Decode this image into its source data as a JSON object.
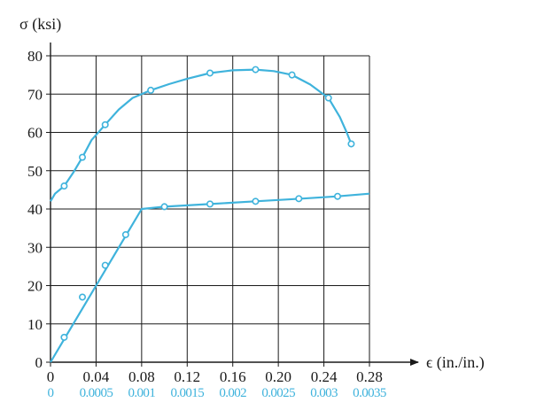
{
  "chart_data": {
    "type": "line",
    "title": "",
    "ylabel": "σ (ksi)",
    "xlabel": "ϵ (in./in.)",
    "ylim": [
      0,
      80
    ],
    "xlim": [
      0,
      0.28
    ],
    "grid": true,
    "y_ticks": [
      "0",
      "10",
      "20",
      "30",
      "40",
      "50",
      "60",
      "70",
      "80"
    ],
    "x_ticks_upper": [
      "0",
      "0.04",
      "0.08",
      "0.12",
      "0.16",
      "0.20",
      "0.24",
      "0.28"
    ],
    "x_ticks_lower": [
      "0",
      "0.0005",
      "0.001",
      "0.0015",
      "0.002",
      "0.0025",
      "0.003",
      "0.0035"
    ],
    "colors": {
      "curve": "#3fb3dc",
      "grid": "#1a1a1a",
      "lower_scale": "#3fb3dc"
    },
    "series": [
      {
        "curve": [
          [
            0,
            42
          ],
          [
            0.004,
            44
          ],
          [
            0.012,
            46
          ],
          [
            0.02,
            49.5
          ],
          [
            0.028,
            53.5
          ],
          [
            0.036,
            58
          ],
          [
            0.048,
            62
          ],
          [
            0.06,
            66
          ],
          [
            0.072,
            69
          ],
          [
            0.088,
            71
          ],
          [
            0.104,
            72.6
          ],
          [
            0.12,
            74
          ],
          [
            0.14,
            75.5
          ],
          [
            0.16,
            76.2
          ],
          [
            0.18,
            76.4
          ],
          [
            0.196,
            76
          ],
          [
            0.212,
            75
          ],
          [
            0.228,
            72.5
          ],
          [
            0.244,
            69
          ],
          [
            0.254,
            64
          ],
          [
            0.26,
            60
          ],
          [
            0.264,
            57
          ]
        ],
        "markers": [
          [
            0.012,
            46
          ],
          [
            0.028,
            53.5
          ],
          [
            0.048,
            62
          ],
          [
            0.088,
            71
          ],
          [
            0.14,
            75.5
          ],
          [
            0.18,
            76.4
          ],
          [
            0.212,
            75
          ],
          [
            0.244,
            69
          ],
          [
            0.264,
            57
          ]
        ]
      },
      {
        "curve": [
          [
            0,
            0
          ],
          [
            0.08,
            40
          ],
          [
            0.1,
            40.6
          ],
          [
            0.14,
            41.3
          ],
          [
            0.18,
            42
          ],
          [
            0.22,
            42.7
          ],
          [
            0.252,
            43.3
          ],
          [
            0.28,
            44
          ]
        ],
        "markers": [
          [
            0.012,
            6.5
          ],
          [
            0.028,
            17
          ],
          [
            0.048,
            25.3
          ],
          [
            0.066,
            33.3
          ],
          [
            0.1,
            40.6
          ],
          [
            0.14,
            41.3
          ],
          [
            0.18,
            42
          ],
          [
            0.218,
            42.7
          ],
          [
            0.252,
            43.3
          ]
        ]
      }
    ]
  }
}
